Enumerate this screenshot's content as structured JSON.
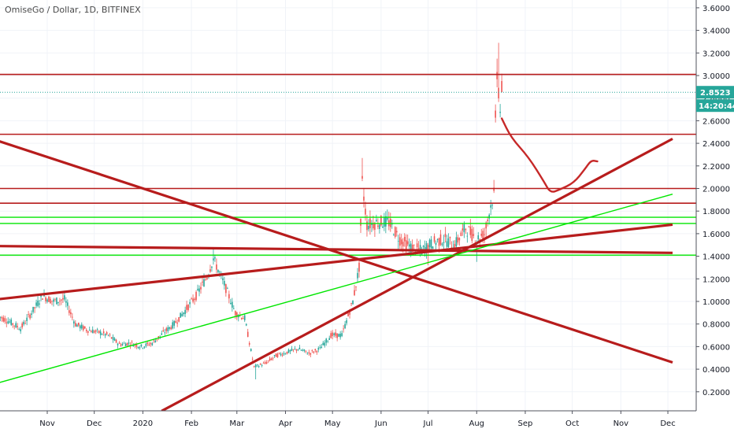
{
  "header": {
    "symbol_title": "OmiseGo / Dollar, 1D, BITFINEX"
  },
  "price_tag": {
    "value": "2.8523",
    "countdown": "14:20:44",
    "color": "#26a69a"
  },
  "colors": {
    "up": "#26a69a",
    "down": "#ef5350",
    "red_line": "#b71c1c",
    "green_line": "#00e600",
    "pen": "#c62828"
  },
  "chart_data": {
    "type": "candlestick",
    "title": "OmiseGo / Dollar, 1D, BITFINEX",
    "y_axis": {
      "position": "right",
      "ticks": [
        "3.6000",
        "3.4000",
        "3.2000",
        "3.0000",
        "2.8000",
        "2.6000",
        "2.4000",
        "2.2000",
        "2.0000",
        "1.8000",
        "1.6000",
        "1.4000",
        "1.2000",
        "1.0000",
        "0.8000",
        "0.6000",
        "0.4000",
        "0.2000"
      ],
      "ylim": [
        0.05,
        3.7
      ]
    },
    "x_axis": {
      "ticks": [
        "Nov",
        "Dec",
        "2020",
        "Feb",
        "Mar",
        "Apr",
        "May",
        "Jun",
        "Jul",
        "Aug",
        "Sep",
        "Oct",
        "Nov",
        "Dec"
      ]
    },
    "last_price": 2.8523,
    "price_path": [
      [
        "2019-10-01",
        0.87
      ],
      [
        "2019-10-08",
        0.82
      ],
      [
        "2019-10-15",
        0.76
      ],
      [
        "2019-10-22",
        0.9
      ],
      [
        "2019-10-29",
        1.05
      ],
      [
        "2019-11-05",
        1.0
      ],
      [
        "2019-11-12",
        1.02
      ],
      [
        "2019-11-19",
        0.8
      ],
      [
        "2019-11-26",
        0.75
      ],
      [
        "2019-12-03",
        0.73
      ],
      [
        "2019-12-10",
        0.7
      ],
      [
        "2019-12-17",
        0.62
      ],
      [
        "2019-12-24",
        0.63
      ],
      [
        "2019-12-31",
        0.6
      ],
      [
        "2020-01-07",
        0.63
      ],
      [
        "2020-01-14",
        0.72
      ],
      [
        "2020-01-21",
        0.8
      ],
      [
        "2020-01-28",
        0.92
      ],
      [
        "2020-02-04",
        1.05
      ],
      [
        "2020-02-11",
        1.22
      ],
      [
        "2020-02-15",
        1.38
      ],
      [
        "2020-02-22",
        1.15
      ],
      [
        "2020-02-29",
        0.9
      ],
      [
        "2020-03-06",
        0.85
      ],
      [
        "2020-03-12",
        0.42
      ],
      [
        "2020-03-19",
        0.45
      ],
      [
        "2020-03-26",
        0.52
      ],
      [
        "2020-04-02",
        0.55
      ],
      [
        "2020-04-09",
        0.58
      ],
      [
        "2020-04-16",
        0.54
      ],
      [
        "2020-04-23",
        0.58
      ],
      [
        "2020-04-30",
        0.7
      ],
      [
        "2020-05-07",
        0.7
      ],
      [
        "2020-05-14",
        1.0
      ],
      [
        "2020-05-18",
        1.3
      ],
      [
        "2020-05-20",
        2.05
      ],
      [
        "2020-05-23",
        1.68
      ],
      [
        "2020-05-30",
        1.7
      ],
      [
        "2020-06-06",
        1.7
      ],
      [
        "2020-06-13",
        1.55
      ],
      [
        "2020-06-20",
        1.48
      ],
      [
        "2020-06-27",
        1.45
      ],
      [
        "2020-07-04",
        1.52
      ],
      [
        "2020-07-11",
        1.55
      ],
      [
        "2020-07-18",
        1.5
      ],
      [
        "2020-07-25",
        1.65
      ],
      [
        "2020-08-01",
        1.55
      ],
      [
        "2020-08-06",
        1.6
      ],
      [
        "2020-08-10",
        1.85
      ],
      [
        "2020-08-12",
        1.95
      ],
      [
        "2020-08-13",
        2.6
      ],
      [
        "2020-08-14",
        3.05
      ],
      [
        "2020-08-16",
        2.7
      ],
      [
        "2020-08-17",
        2.85
      ]
    ],
    "annotations": {
      "horizontal_lines": [
        {
          "y": 3.01,
          "color": "red"
        },
        {
          "y": 2.48,
          "color": "red"
        },
        {
          "y": 2.0,
          "color": "red"
        },
        {
          "y": 1.87,
          "color": "red"
        },
        {
          "y": 1.745,
          "color": "green"
        },
        {
          "y": 1.69,
          "color": "green"
        },
        {
          "y": 1.41,
          "color": "green"
        }
      ],
      "trend_lines": [
        {
          "from": [
            "2019-10-01",
            2.42
          ],
          "to": [
            "2020-12-04",
            0.46
          ],
          "color": "red"
        },
        {
          "from": [
            "2019-10-01",
            1.02
          ],
          "to": [
            "2020-12-04",
            1.68
          ],
          "color": "red"
        },
        {
          "from": [
            "2019-10-01",
            1.49
          ],
          "to": [
            "2020-12-04",
            1.43
          ],
          "color": "red"
        },
        {
          "from": [
            "2020-01-13",
            0.03
          ],
          "to": [
            "2020-12-04",
            2.44
          ],
          "color": "red"
        },
        {
          "from": [
            "2019-10-01",
            0.28
          ],
          "to": [
            "2020-12-04",
            1.95
          ],
          "color": "green"
        }
      ],
      "projection_path": [
        [
          "2020-08-17",
          2.62
        ],
        [
          "2020-08-23",
          2.45
        ],
        [
          "2020-09-03",
          2.28
        ],
        [
          "2020-09-13",
          2.06
        ],
        [
          "2020-09-17",
          1.96
        ],
        [
          "2020-09-23",
          1.99
        ],
        [
          "2020-10-02",
          2.05
        ],
        [
          "2020-10-09",
          2.17
        ],
        [
          "2020-10-13",
          2.25
        ],
        [
          "2020-10-17",
          2.24
        ]
      ]
    }
  }
}
